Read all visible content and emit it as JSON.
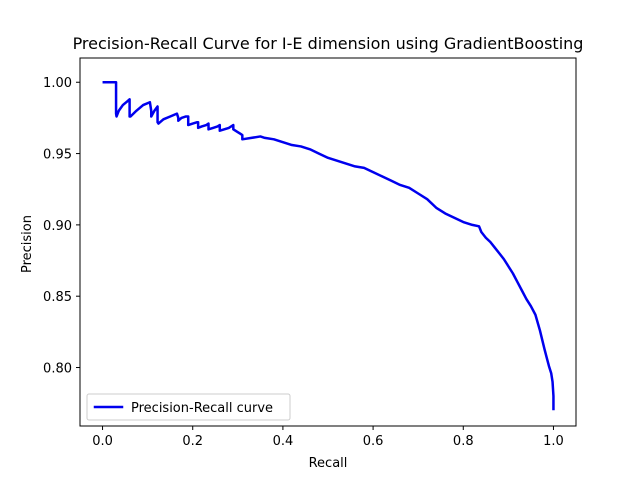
{
  "chart_data": {
    "type": "line",
    "title": "Precision-Recall Curve for I-E dimension using GradientBoosting",
    "xlabel": "Recall",
    "ylabel": "Precision",
    "xlim": [
      -0.05,
      1.05
    ],
    "ylim": [
      0.759,
      1.017
    ],
    "xticks": [
      0.0,
      0.2,
      0.4,
      0.6,
      0.8,
      1.0
    ],
    "xtick_labels": [
      "0.0",
      "0.2",
      "0.4",
      "0.6",
      "0.8",
      "1.0"
    ],
    "yticks": [
      0.8,
      0.85,
      0.9,
      0.95,
      1.0
    ],
    "ytick_labels": [
      "0.80",
      "0.85",
      "0.90",
      "0.95",
      "1.00"
    ],
    "grid": false,
    "legend": {
      "position": "lower-left",
      "entries": [
        "Precision-Recall curve"
      ]
    },
    "series": [
      {
        "name": "Precision-Recall curve",
        "color": "#0000ee",
        "x": [
          0.0,
          0.03,
          0.03,
          0.031,
          0.036,
          0.045,
          0.06,
          0.06,
          0.062,
          0.075,
          0.09,
          0.105,
          0.108,
          0.108,
          0.115,
          0.122,
          0.122,
          0.124,
          0.135,
          0.15,
          0.165,
          0.168,
          0.168,
          0.175,
          0.185,
          0.19,
          0.19,
          0.2,
          0.21,
          0.212,
          0.212,
          0.22,
          0.23,
          0.235,
          0.235,
          0.245,
          0.255,
          0.26,
          0.26,
          0.27,
          0.28,
          0.29,
          0.29,
          0.3,
          0.305,
          0.31,
          0.31,
          0.33,
          0.35,
          0.36,
          0.38,
          0.4,
          0.42,
          0.44,
          0.46,
          0.48,
          0.5,
          0.52,
          0.54,
          0.56,
          0.58,
          0.6,
          0.62,
          0.64,
          0.66,
          0.68,
          0.7,
          0.72,
          0.74,
          0.76,
          0.78,
          0.8,
          0.82,
          0.835,
          0.84,
          0.85,
          0.86,
          0.87,
          0.88,
          0.89,
          0.9,
          0.91,
          0.92,
          0.93,
          0.94,
          0.95,
          0.96,
          0.97,
          0.98,
          0.985,
          0.99,
          0.995,
          0.998,
          1.0,
          1.0
        ],
        "y": [
          1.0,
          1.0,
          0.978,
          0.976,
          0.98,
          0.984,
          0.988,
          0.976,
          0.976,
          0.98,
          0.984,
          0.986,
          0.98,
          0.976,
          0.98,
          0.983,
          0.972,
          0.971,
          0.974,
          0.976,
          0.978,
          0.975,
          0.973,
          0.975,
          0.976,
          0.976,
          0.97,
          0.971,
          0.972,
          0.972,
          0.968,
          0.969,
          0.97,
          0.971,
          0.967,
          0.968,
          0.969,
          0.97,
          0.966,
          0.967,
          0.968,
          0.97,
          0.967,
          0.965,
          0.964,
          0.963,
          0.96,
          0.961,
          0.962,
          0.961,
          0.96,
          0.958,
          0.956,
          0.955,
          0.953,
          0.95,
          0.947,
          0.945,
          0.943,
          0.941,
          0.94,
          0.937,
          0.934,
          0.931,
          0.928,
          0.926,
          0.922,
          0.918,
          0.912,
          0.908,
          0.905,
          0.902,
          0.9,
          0.899,
          0.895,
          0.891,
          0.888,
          0.884,
          0.88,
          0.876,
          0.871,
          0.866,
          0.86,
          0.854,
          0.848,
          0.843,
          0.837,
          0.826,
          0.813,
          0.807,
          0.801,
          0.796,
          0.79,
          0.78,
          0.77
        ]
      }
    ]
  }
}
